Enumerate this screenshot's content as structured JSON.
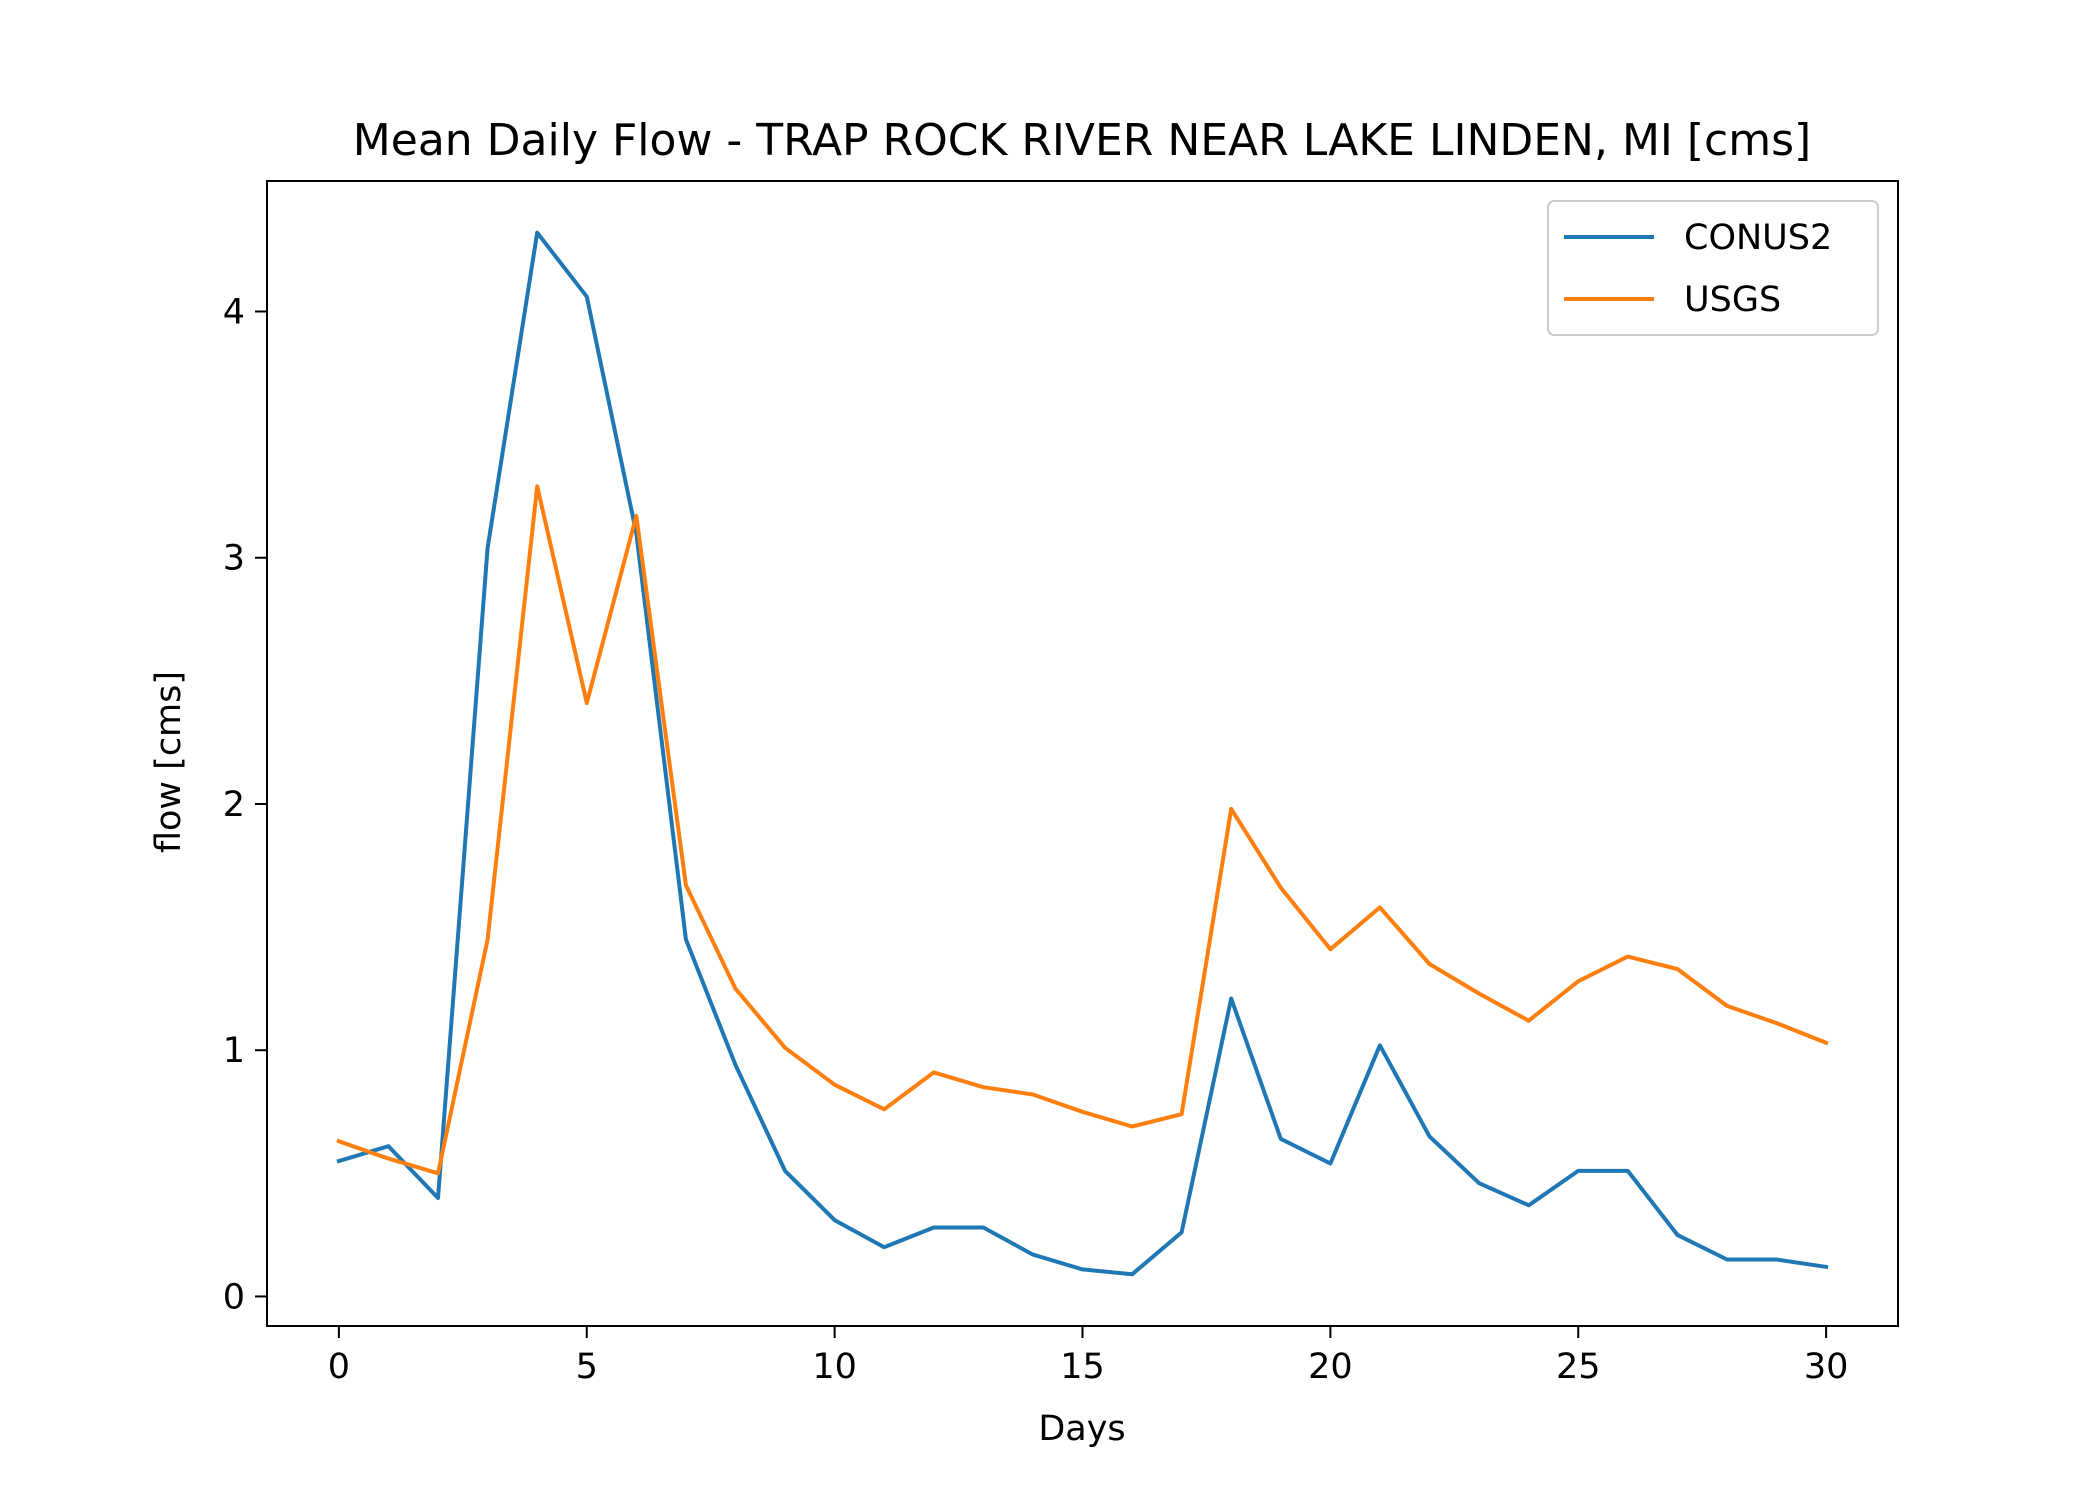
{
  "chart_data": {
    "type": "line",
    "title": "Mean Daily Flow - TRAP ROCK RIVER NEAR LAKE LINDEN, MI [cms]",
    "xlabel": "Days",
    "ylabel": "flow [cms]",
    "xlim": [
      -1.45,
      31.45
    ],
    "ylim": [
      -0.12,
      4.53
    ],
    "xticks": [
      0,
      5,
      10,
      15,
      20,
      25,
      30
    ],
    "yticks": [
      0,
      1,
      2,
      3,
      4
    ],
    "grid": false,
    "legend_position": "top-right",
    "x": [
      0,
      1,
      2,
      3,
      4,
      5,
      6,
      7,
      8,
      9,
      10,
      11,
      12,
      13,
      14,
      15,
      16,
      17,
      18,
      19,
      20,
      21,
      22,
      23,
      24,
      25,
      26,
      27,
      28,
      29,
      30
    ],
    "series": [
      {
        "name": "CONUS2",
        "color": "#1f77b4",
        "values": [
          0.55,
          0.61,
          0.4,
          3.04,
          4.32,
          4.06,
          3.1,
          1.45,
          0.94,
          0.51,
          0.31,
          0.2,
          0.28,
          0.28,
          0.17,
          0.11,
          0.09,
          0.26,
          1.21,
          0.64,
          0.54,
          1.02,
          0.65,
          0.46,
          0.37,
          0.51,
          0.51,
          0.25,
          0.15,
          0.15,
          0.12
        ]
      },
      {
        "name": "USGS",
        "color": "#ff7f0e",
        "values": [
          0.63,
          0.56,
          0.5,
          1.45,
          3.29,
          2.41,
          3.17,
          1.67,
          1.25,
          1.01,
          0.86,
          0.76,
          0.91,
          0.85,
          0.82,
          0.75,
          0.69,
          0.74,
          1.98,
          1.66,
          1.41,
          1.58,
          1.35,
          1.23,
          1.12,
          1.28,
          1.38,
          1.33,
          1.18,
          1.11,
          1.03
        ]
      }
    ]
  }
}
